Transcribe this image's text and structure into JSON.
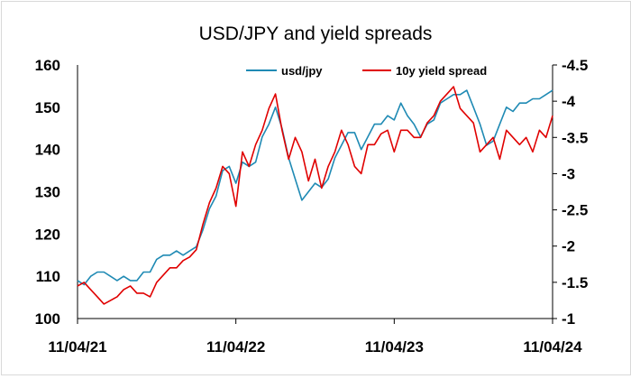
{
  "chart_data": {
    "type": "line",
    "title": "USD/JPY and yield spreads",
    "xlabel": "",
    "ylabel": "",
    "x_ticks": [
      "11/04/21",
      "11/04/22",
      "11/04/23",
      "11/04/24"
    ],
    "y_left": {
      "ticks": [
        "100",
        "110",
        "120",
        "130",
        "140",
        "150",
        "160"
      ],
      "lim": [
        100,
        160
      ]
    },
    "y_right": {
      "ticks": [
        "-1",
        "-1.5",
        "-2",
        "-2.5",
        "-3",
        "-3.5",
        "-4",
        "-4.5"
      ],
      "lim": [
        -1,
        -4.5
      ],
      "inverted": true
    },
    "legend_position": "top-right",
    "x_domain": [
      0,
      36
    ],
    "series": [
      {
        "name": "usd/jpy",
        "axis": "left",
        "color": "#1f8ab4",
        "x": [
          0,
          0.5,
          1,
          1.5,
          2,
          2.5,
          3,
          3.5,
          4,
          4.5,
          5,
          5.5,
          6,
          6.5,
          7,
          7.5,
          8,
          8.5,
          9,
          9.5,
          10,
          10.5,
          11,
          11.5,
          12,
          12.5,
          13,
          13.5,
          14,
          14.5,
          15,
          15.5,
          16,
          16.5,
          17,
          17.5,
          18,
          18.5,
          19,
          19.5,
          20,
          20.5,
          21,
          21.5,
          22,
          22.5,
          23,
          23.5,
          24,
          24.5,
          25,
          25.5,
          26,
          26.5,
          27,
          27.5,
          28,
          28.5,
          29,
          29.5,
          30,
          30.5,
          31,
          31.5,
          32,
          32.5,
          33,
          33.5,
          34,
          34.5,
          35,
          35.5,
          36
        ],
        "values": [
          109,
          108,
          110,
          111,
          111,
          110,
          109,
          110,
          109,
          109,
          111,
          111,
          114,
          115,
          115,
          116,
          115,
          116,
          117,
          121,
          126,
          129,
          135,
          136,
          132,
          137,
          136,
          137,
          143,
          146,
          150,
          145,
          138,
          133,
          128,
          130,
          132,
          131,
          133,
          138,
          141,
          144,
          144,
          140,
          143,
          146,
          146,
          148,
          147,
          151,
          148,
          146,
          143,
          146,
          147,
          151,
          152,
          153,
          153,
          154,
          150,
          146,
          141,
          142,
          146,
          150,
          149,
          151,
          151,
          152,
          152,
          153,
          154
        ]
      },
      {
        "name": "10y yield spread",
        "axis": "right",
        "color": "#e00000",
        "x": [
          0,
          0.5,
          1,
          1.5,
          2,
          2.5,
          3,
          3.5,
          4,
          4.5,
          5,
          5.5,
          6,
          6.5,
          7,
          7.5,
          8,
          8.5,
          9,
          9.5,
          10,
          10.5,
          11,
          11.5,
          12,
          12.5,
          13,
          13.5,
          14,
          14.5,
          15,
          15.5,
          16,
          16.5,
          17,
          17.5,
          18,
          18.5,
          19,
          19.5,
          20,
          20.5,
          21,
          21.5,
          22,
          22.5,
          23,
          23.5,
          24,
          24.5,
          25,
          25.5,
          26,
          26.5,
          27,
          27.5,
          28,
          28.5,
          29,
          29.5,
          30,
          30.5,
          31,
          31.5,
          32,
          32.5,
          33,
          33.5,
          34,
          34.5,
          35,
          35.5,
          36
        ],
        "values": [
          -1.45,
          -1.5,
          -1.4,
          -1.3,
          -1.2,
          -1.25,
          -1.3,
          -1.4,
          -1.45,
          -1.35,
          -1.35,
          -1.3,
          -1.5,
          -1.6,
          -1.7,
          -1.7,
          -1.8,
          -1.85,
          -1.95,
          -2.3,
          -2.6,
          -2.8,
          -3.1,
          -3.0,
          -2.55,
          -3.3,
          -3.1,
          -3.4,
          -3.6,
          -3.9,
          -4.1,
          -3.6,
          -3.2,
          -3.5,
          -3.3,
          -2.9,
          -3.2,
          -2.8,
          -3.1,
          -3.3,
          -3.6,
          -3.4,
          -3.1,
          -3.0,
          -3.4,
          -3.4,
          -3.55,
          -3.6,
          -3.3,
          -3.6,
          -3.6,
          -3.5,
          -3.5,
          -3.7,
          -3.8,
          -4.0,
          -4.1,
          -4.2,
          -3.9,
          -3.8,
          -3.7,
          -3.3,
          -3.4,
          -3.5,
          -3.2,
          -3.6,
          -3.5,
          -3.4,
          -3.5,
          -3.3,
          -3.6,
          -3.5,
          -3.8
        ]
      }
    ]
  }
}
